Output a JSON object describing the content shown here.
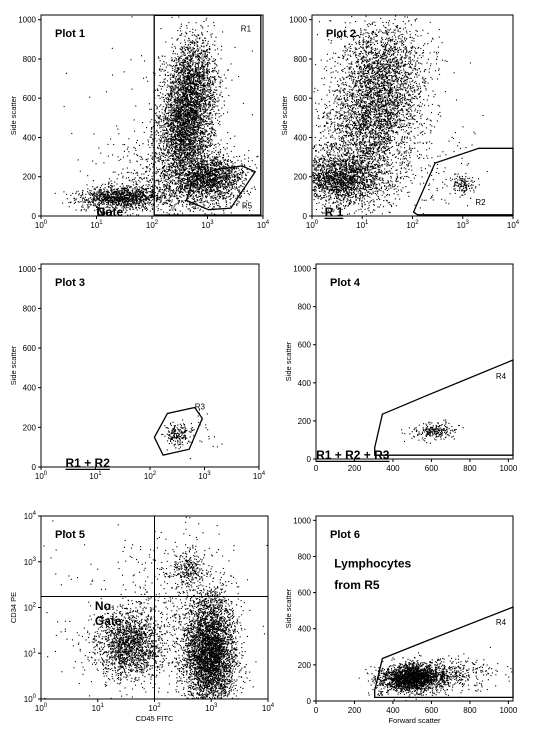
{
  "chart_data": [
    {
      "id": "plot1",
      "type": "scatter",
      "title": "Plot 1",
      "annotations": [
        {
          "text": "No",
          "x": 1.0,
          "y": 0.555
        },
        {
          "text": "Gate",
          "x": 1.0,
          "y": 0.455
        }
      ],
      "xlabel": "",
      "ylabel": "Side scatter",
      "x_scale": "log",
      "xlim": [
        0,
        4
      ],
      "ylim": [
        0,
        1024
      ],
      "x_ticks": [
        {
          "v": 0,
          "base": "10",
          "exp": "0"
        },
        {
          "v": 1,
          "base": "10",
          "exp": "1"
        },
        {
          "v": 2,
          "base": "10",
          "exp": "2"
        },
        {
          "v": 3,
          "base": "10",
          "exp": "3"
        },
        {
          "v": 4,
          "base": "10",
          "exp": "4"
        }
      ],
      "y_ticks": [
        {
          "v": 0,
          "label": "0"
        },
        {
          "v": 200,
          "label": "200"
        },
        {
          "v": 400,
          "label": "400"
        },
        {
          "v": 600,
          "label": "600"
        },
        {
          "v": 800,
          "label": "800"
        },
        {
          "v": 1000,
          "label": "1000"
        }
      ],
      "regions": [
        {
          "label": "R1",
          "points": [
            [
              2.04,
              5
            ],
            [
              3.96,
              5
            ],
            [
              3.96,
              1022
            ],
            [
              2.04,
              1022
            ]
          ],
          "label_at": [
            3.6,
            940
          ]
        },
        {
          "label": "R5",
          "points": [
            [
              2.62,
              80
            ],
            [
              3.02,
              32
            ],
            [
              3.42,
              40
            ],
            [
              3.86,
              225
            ],
            [
              3.62,
              255
            ],
            [
              3.12,
              235
            ],
            [
              2.72,
              170
            ]
          ],
          "label_at": [
            3.62,
            38
          ],
          "hidden_edge": true
        }
      ],
      "clusters": [
        {
          "x": 2.6,
          "y": 470,
          "sx": 0.26,
          "sy": 165,
          "n": 3400,
          "rot": 0.22
        },
        {
          "x": 2.75,
          "y": 720,
          "sx": 0.22,
          "sy": 120,
          "n": 900,
          "rot": 0
        },
        {
          "x": 3.05,
          "y": 190,
          "sx": 0.32,
          "sy": 60,
          "n": 1500,
          "rot": 0
        },
        {
          "x": 1.45,
          "y": 95,
          "sx": 0.4,
          "sy": 30,
          "n": 1200,
          "rot": 0.05
        },
        {
          "x": 2.2,
          "y": 180,
          "sx": 0.55,
          "sy": 120,
          "n": 500,
          "rot": 0
        },
        {
          "x": 2.4,
          "y": 420,
          "sx": 0.7,
          "sy": 260,
          "n": 150,
          "rot": 0
        }
      ]
    },
    {
      "id": "plot2",
      "type": "scatter",
      "title": "Plot 2",
      "annotations": [
        {
          "text": "R 1",
          "x": 0.25,
          "y": 0.47,
          "underline": true
        }
      ],
      "xlabel": "",
      "ylabel": "Side scatter",
      "x_scale": "log",
      "xlim": [
        0,
        4
      ],
      "ylim": [
        0,
        1024
      ],
      "x_ticks": [
        {
          "v": 0,
          "base": "10",
          "exp": "0"
        },
        {
          "v": 1,
          "base": "10",
          "exp": "1"
        },
        {
          "v": 2,
          "base": "10",
          "exp": "2"
        },
        {
          "v": 3,
          "base": "10",
          "exp": "3"
        },
        {
          "v": 4,
          "base": "10",
          "exp": "4"
        }
      ],
      "y_ticks": [
        {
          "v": 0,
          "label": "0"
        },
        {
          "v": 200,
          "label": "200"
        },
        {
          "v": 400,
          "label": "400"
        },
        {
          "v": 600,
          "label": "600"
        },
        {
          "v": 800,
          "label": "800"
        },
        {
          "v": 1000,
          "label": "1000"
        }
      ],
      "regions": [
        {
          "label": "R2",
          "points": [
            [
              2.02,
              20
            ],
            [
              2.45,
              270
            ],
            [
              3.32,
              345
            ],
            [
              4.0,
              345
            ],
            [
              4.0,
              6
            ],
            [
              2.1,
              6
            ]
          ],
          "label_at": [
            3.25,
            55
          ],
          "open_right": true
        }
      ],
      "clusters": [
        {
          "x": 1.2,
          "y": 520,
          "sx": 0.5,
          "sy": 200,
          "n": 3600,
          "rot": 0.28
        },
        {
          "x": 0.55,
          "y": 190,
          "sx": 0.45,
          "sy": 65,
          "n": 1800,
          "rot": 0
        },
        {
          "x": 1.4,
          "y": 780,
          "sx": 0.35,
          "sy": 110,
          "n": 700,
          "rot": 0
        },
        {
          "x": 3.0,
          "y": 160,
          "sx": 0.12,
          "sy": 25,
          "n": 120,
          "rot": 0
        },
        {
          "x": 2.2,
          "y": 250,
          "sx": 0.7,
          "sy": 160,
          "n": 180,
          "rot": 0
        }
      ]
    },
    {
      "id": "plot3",
      "type": "scatter",
      "title": "Plot 3",
      "annotations": [
        {
          "text": "R1  +  R2",
          "x": 0.45,
          "y": 0.6,
          "underline": true
        }
      ],
      "xlabel": "",
      "ylabel": "Side scatter",
      "x_scale": "log",
      "xlim": [
        0,
        4
      ],
      "ylim": [
        0,
        1024
      ],
      "x_ticks": [
        {
          "v": 0,
          "base": "10",
          "exp": "0"
        },
        {
          "v": 1,
          "base": "10",
          "exp": "1"
        },
        {
          "v": 2,
          "base": "10",
          "exp": "2"
        },
        {
          "v": 3,
          "base": "10",
          "exp": "3"
        },
        {
          "v": 4,
          "base": "10",
          "exp": "4"
        }
      ],
      "y_ticks": [
        {
          "v": 0,
          "label": "0"
        },
        {
          "v": 200,
          "label": "200"
        },
        {
          "v": 400,
          "label": "400"
        },
        {
          "v": 600,
          "label": "600"
        },
        {
          "v": 800,
          "label": "800"
        },
        {
          "v": 1000,
          "label": "1000"
        }
      ],
      "regions": [
        {
          "label": "R3",
          "points": [
            [
              2.08,
              150
            ],
            [
              2.24,
              60
            ],
            [
              2.72,
              90
            ],
            [
              2.96,
              245
            ],
            [
              2.82,
              300
            ],
            [
              2.32,
              270
            ]
          ],
          "label_at": [
            2.82,
            290
          ]
        }
      ],
      "clusters": [
        {
          "x": 2.5,
          "y": 165,
          "sx": 0.12,
          "sy": 30,
          "n": 190,
          "rot": 0
        },
        {
          "x": 2.9,
          "y": 180,
          "sx": 0.18,
          "sy": 60,
          "n": 25,
          "rot": 0
        }
      ]
    },
    {
      "id": "plot4",
      "type": "scatter",
      "title": "Plot 4",
      "annotations": [
        {
          "text": "R1  +  R2  +  R3",
          "x": 0.46,
          "y": 0.6,
          "underline": true
        }
      ],
      "xlabel": "",
      "ylabel": "Side scatter",
      "x_scale": "linear",
      "xlim": [
        0,
        1024
      ],
      "ylim": [
        0,
        1024
      ],
      "x_ticks": [
        {
          "v": 0,
          "label": "0"
        },
        {
          "v": 200,
          "label": "200"
        },
        {
          "v": 400,
          "label": "400"
        },
        {
          "v": 600,
          "label": "600"
        },
        {
          "v": 800,
          "label": "800"
        },
        {
          "v": 1000,
          "label": "1000"
        }
      ],
      "y_ticks": [
        {
          "v": 0,
          "label": "0"
        },
        {
          "v": 200,
          "label": "200"
        },
        {
          "v": 400,
          "label": "400"
        },
        {
          "v": 600,
          "label": "600"
        },
        {
          "v": 800,
          "label": "800"
        },
        {
          "v": 1000,
          "label": "1000"
        }
      ],
      "regions": [
        {
          "label": "R4",
          "points": [
            [
              305,
              60
            ],
            [
              305,
              20
            ],
            [
              1024,
              20
            ],
            [
              1024,
              520
            ],
            [
              580,
              335
            ],
            [
              345,
              235
            ]
          ],
          "label_at": [
            935,
            420
          ],
          "open_right": true
        }
      ],
      "clusters": [
        {
          "x": 615,
          "y": 150,
          "sx": 60,
          "sy": 22,
          "n": 230,
          "rot": 0.2
        }
      ]
    },
    {
      "id": "plot5",
      "type": "scatter",
      "title": "Plot 5",
      "annotations": [
        {
          "text": "No",
          "x": 0.95,
          "y": 1.95
        },
        {
          "text": "Gate",
          "x": 0.95,
          "y": 1.62
        }
      ],
      "xlabel": "CD45 FITC",
      "ylabel": "CD34 PE",
      "x_scale": "log",
      "y_scale": "log",
      "xlim": [
        0,
        4
      ],
      "ylim": [
        0,
        4
      ],
      "x_ticks": [
        {
          "v": 0,
          "base": "10",
          "exp": "0"
        },
        {
          "v": 1,
          "base": "10",
          "exp": "1"
        },
        {
          "v": 2,
          "base": "10",
          "exp": "2"
        },
        {
          "v": 3,
          "base": "10",
          "exp": "3"
        },
        {
          "v": 4,
          "base": "10",
          "exp": "4"
        }
      ],
      "y_ticks": [
        {
          "v": 0,
          "base": "10",
          "exp": "0"
        },
        {
          "v": 1,
          "base": "10",
          "exp": "1"
        },
        {
          "v": 2,
          "base": "10",
          "exp": "2"
        },
        {
          "v": 3,
          "base": "10",
          "exp": "3"
        },
        {
          "v": 4,
          "base": "10",
          "exp": "4"
        }
      ],
      "quadrant": {
        "x": 2.0,
        "y": 2.24
      },
      "regions": [],
      "clusters": [
        {
          "x": 2.95,
          "y": 1.05,
          "sx": 0.24,
          "sy": 0.62,
          "n": 4200,
          "rot": 0
        },
        {
          "x": 1.55,
          "y": 1.2,
          "sx": 0.3,
          "sy": 0.38,
          "n": 1700,
          "rot": 0
        },
        {
          "x": 2.6,
          "y": 2.85,
          "sx": 0.13,
          "sy": 0.17,
          "n": 220,
          "rot": 0
        },
        {
          "x": 2.4,
          "y": 2.6,
          "sx": 0.5,
          "sy": 0.6,
          "n": 250,
          "rot": 0
        },
        {
          "x": 1.6,
          "y": 1.6,
          "sx": 0.9,
          "sy": 0.9,
          "n": 200,
          "rot": 0
        }
      ]
    },
    {
      "id": "plot6",
      "type": "scatter",
      "title": "Plot 6",
      "annotations": [
        {
          "text": "Lymphocytes",
          "x": 95,
          "y": 740
        },
        {
          "text": "from R5",
          "x": 95,
          "y": 620
        }
      ],
      "xlabel": "Forward scatter",
      "ylabel": "Side scatter",
      "x_scale": "linear",
      "xlim": [
        0,
        1024
      ],
      "ylim": [
        0,
        1024
      ],
      "x_ticks": [
        {
          "v": 0,
          "label": "0"
        },
        {
          "v": 200,
          "label": "200"
        },
        {
          "v": 400,
          "label": "400"
        },
        {
          "v": 600,
          "label": "600"
        },
        {
          "v": 800,
          "label": "800"
        },
        {
          "v": 1000,
          "label": "1000"
        }
      ],
      "y_ticks": [
        {
          "v": 0,
          "label": "0"
        },
        {
          "v": 200,
          "label": "200"
        },
        {
          "v": 400,
          "label": "400"
        },
        {
          "v": 600,
          "label": "600"
        },
        {
          "v": 800,
          "label": "800"
        },
        {
          "v": 1000,
          "label": "1000"
        }
      ],
      "regions": [
        {
          "label": "R4",
          "points": [
            [
              305,
              60
            ],
            [
              305,
              20
            ],
            [
              1024,
              20
            ],
            [
              1024,
              520
            ],
            [
              580,
              335
            ],
            [
              345,
              235
            ]
          ],
          "label_at": [
            935,
            420
          ],
          "open_right": true
        }
      ],
      "clusters": [
        {
          "x": 500,
          "y": 130,
          "sx": 85,
          "sy": 38,
          "n": 2300,
          "rot": 0.12
        },
        {
          "x": 720,
          "y": 150,
          "sx": 120,
          "sy": 45,
          "n": 300,
          "rot": 0
        }
      ]
    }
  ]
}
